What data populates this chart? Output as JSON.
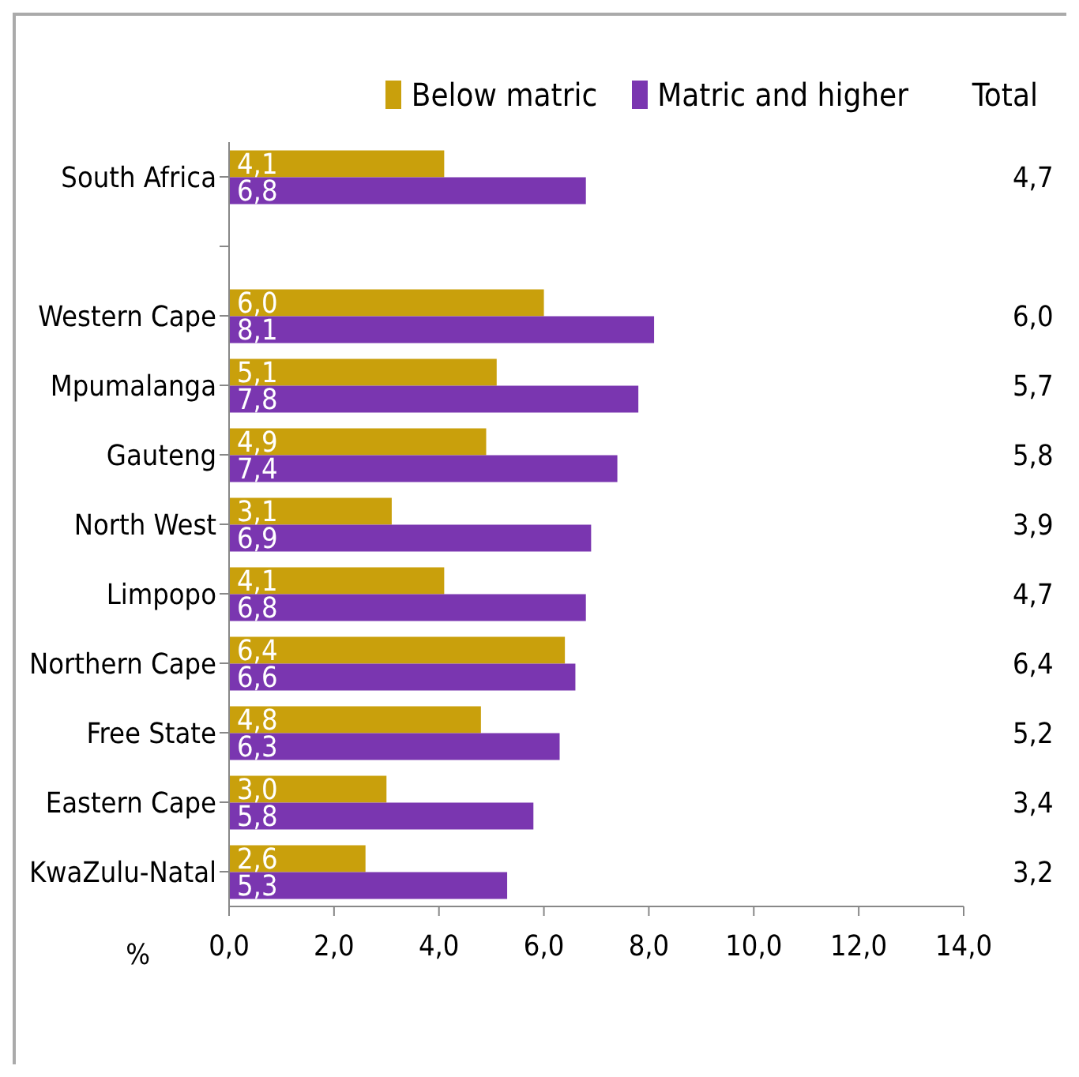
{
  "chart_data": {
    "type": "bar",
    "orientation": "horizontal",
    "xlabel": "%",
    "categories": [
      "South Africa",
      null,
      "Western Cape",
      "Mpumalanga",
      "Gauteng",
      "North West",
      "Limpopo",
      "Northern Cape",
      "Free State",
      "Eastern Cape",
      "KwaZulu-Natal"
    ],
    "series": [
      {
        "name": "Below matric",
        "color": "#c9a00c",
        "values": [
          4.1,
          null,
          6.0,
          5.1,
          4.9,
          3.1,
          4.1,
          6.4,
          4.8,
          3.0,
          2.6
        ],
        "value_labels": [
          "4,1",
          null,
          "6,0",
          "5,1",
          "4,9",
          "3,1",
          "4,1",
          "6,4",
          "4,8",
          "3,0",
          "2,6"
        ]
      },
      {
        "name": "Matric and higher",
        "color": "#7a36b0",
        "values": [
          6.8,
          null,
          8.1,
          7.8,
          7.4,
          6.9,
          6.8,
          6.6,
          6.3,
          5.8,
          5.3
        ],
        "value_labels": [
          "6,8",
          null,
          "8,1",
          "7,8",
          "7,4",
          "6,9",
          "6,8",
          "6,6",
          "6,3",
          "5,8",
          "5,3"
        ]
      }
    ],
    "xlim": [
      0,
      14
    ],
    "xticks": [
      {
        "value": 0,
        "label": "0,0"
      },
      {
        "value": 2,
        "label": "2,0"
      },
      {
        "value": 4,
        "label": "4,0"
      },
      {
        "value": 6,
        "label": "6,0"
      },
      {
        "value": 8,
        "label": "8,0"
      },
      {
        "value": 10,
        "label": "10,0"
      },
      {
        "value": 12,
        "label": "12,0"
      },
      {
        "value": 14,
        "label": "14,0"
      }
    ],
    "legend": "top right",
    "grid": false,
    "annotations": [
      "Total",
      "4,7",
      "6,0",
      "5,7",
      "5,8",
      "3,9",
      "4,7",
      "6,4",
      "5,2",
      "3,4",
      "3,2"
    ]
  }
}
